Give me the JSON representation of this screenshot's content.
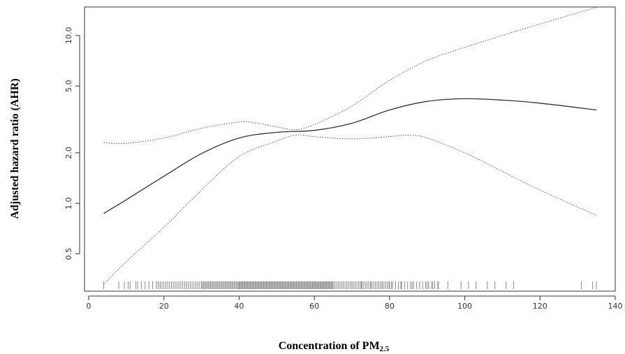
{
  "chart_data": {
    "type": "line",
    "xlabel_main": "Concentration of PM",
    "xlabel_sub": "2.5",
    "ylabel": "Adjusted hazard ratio (AHR)",
    "x_scale": "linear",
    "y_scale": "log",
    "xlim": [
      0,
      140
    ],
    "ylim": [
      0.33,
      14.5
    ],
    "x_ticks": [
      0,
      20,
      40,
      60,
      80,
      100,
      120,
      140
    ],
    "y_ticks": [
      {
        "value": 0.5,
        "label": "0.5"
      },
      {
        "value": 1.0,
        "label": "1.0"
      },
      {
        "value": 2.0,
        "label": "2.0"
      },
      {
        "value": 5.0,
        "label": "5.0"
      },
      {
        "value": 10.0,
        "label": "10.0"
      }
    ],
    "grid": false,
    "series": [
      {
        "role": "estimate",
        "style": "solid",
        "color": "#333333",
        "x": [
          4,
          10,
          20,
          30,
          40,
          50,
          60,
          70,
          80,
          90,
          100,
          110,
          120,
          135
        ],
        "y": [
          0.87,
          1.05,
          1.45,
          1.98,
          2.45,
          2.65,
          2.72,
          3.0,
          3.6,
          4.05,
          4.2,
          4.12,
          3.95,
          3.6
        ]
      },
      {
        "role": "upper",
        "style": "dotted",
        "color": "#666666",
        "x": [
          4,
          10,
          20,
          30,
          40,
          45,
          50,
          55,
          60,
          70,
          80,
          90,
          100,
          110,
          120,
          135
        ],
        "y": [
          2.3,
          2.28,
          2.45,
          2.8,
          3.05,
          3.0,
          2.85,
          2.75,
          2.95,
          3.8,
          5.4,
          7.1,
          8.5,
          10.0,
          11.7,
          14.7
        ]
      },
      {
        "role": "lower",
        "style": "dotted",
        "color": "#666666",
        "x": [
          4,
          10,
          20,
          30,
          40,
          50,
          55,
          60,
          70,
          80,
          85,
          90,
          100,
          110,
          120,
          135
        ],
        "y": [
          0.33,
          0.45,
          0.72,
          1.2,
          1.9,
          2.35,
          2.55,
          2.5,
          2.42,
          2.5,
          2.55,
          2.45,
          2.0,
          1.55,
          1.2,
          0.85
        ]
      }
    ],
    "rug_color": "#8a8a8a",
    "rug_sparse_x": [
      4,
      8,
      9.5,
      10.5,
      11,
      12.5,
      13,
      14,
      15,
      16,
      17,
      18,
      19,
      70,
      72.5,
      75,
      78,
      80.5,
      83,
      86,
      88,
      90,
      91.5,
      93,
      95.5,
      99,
      101,
      103,
      106,
      108,
      111,
      113,
      131,
      134,
      135
    ],
    "rug_dense_ranges": [
      [
        18,
        30,
        0.5
      ],
      [
        30,
        40,
        0.3
      ],
      [
        40,
        65,
        0.25
      ],
      [
        65,
        80,
        0.45
      ],
      [
        80,
        93,
        0.8
      ]
    ]
  }
}
